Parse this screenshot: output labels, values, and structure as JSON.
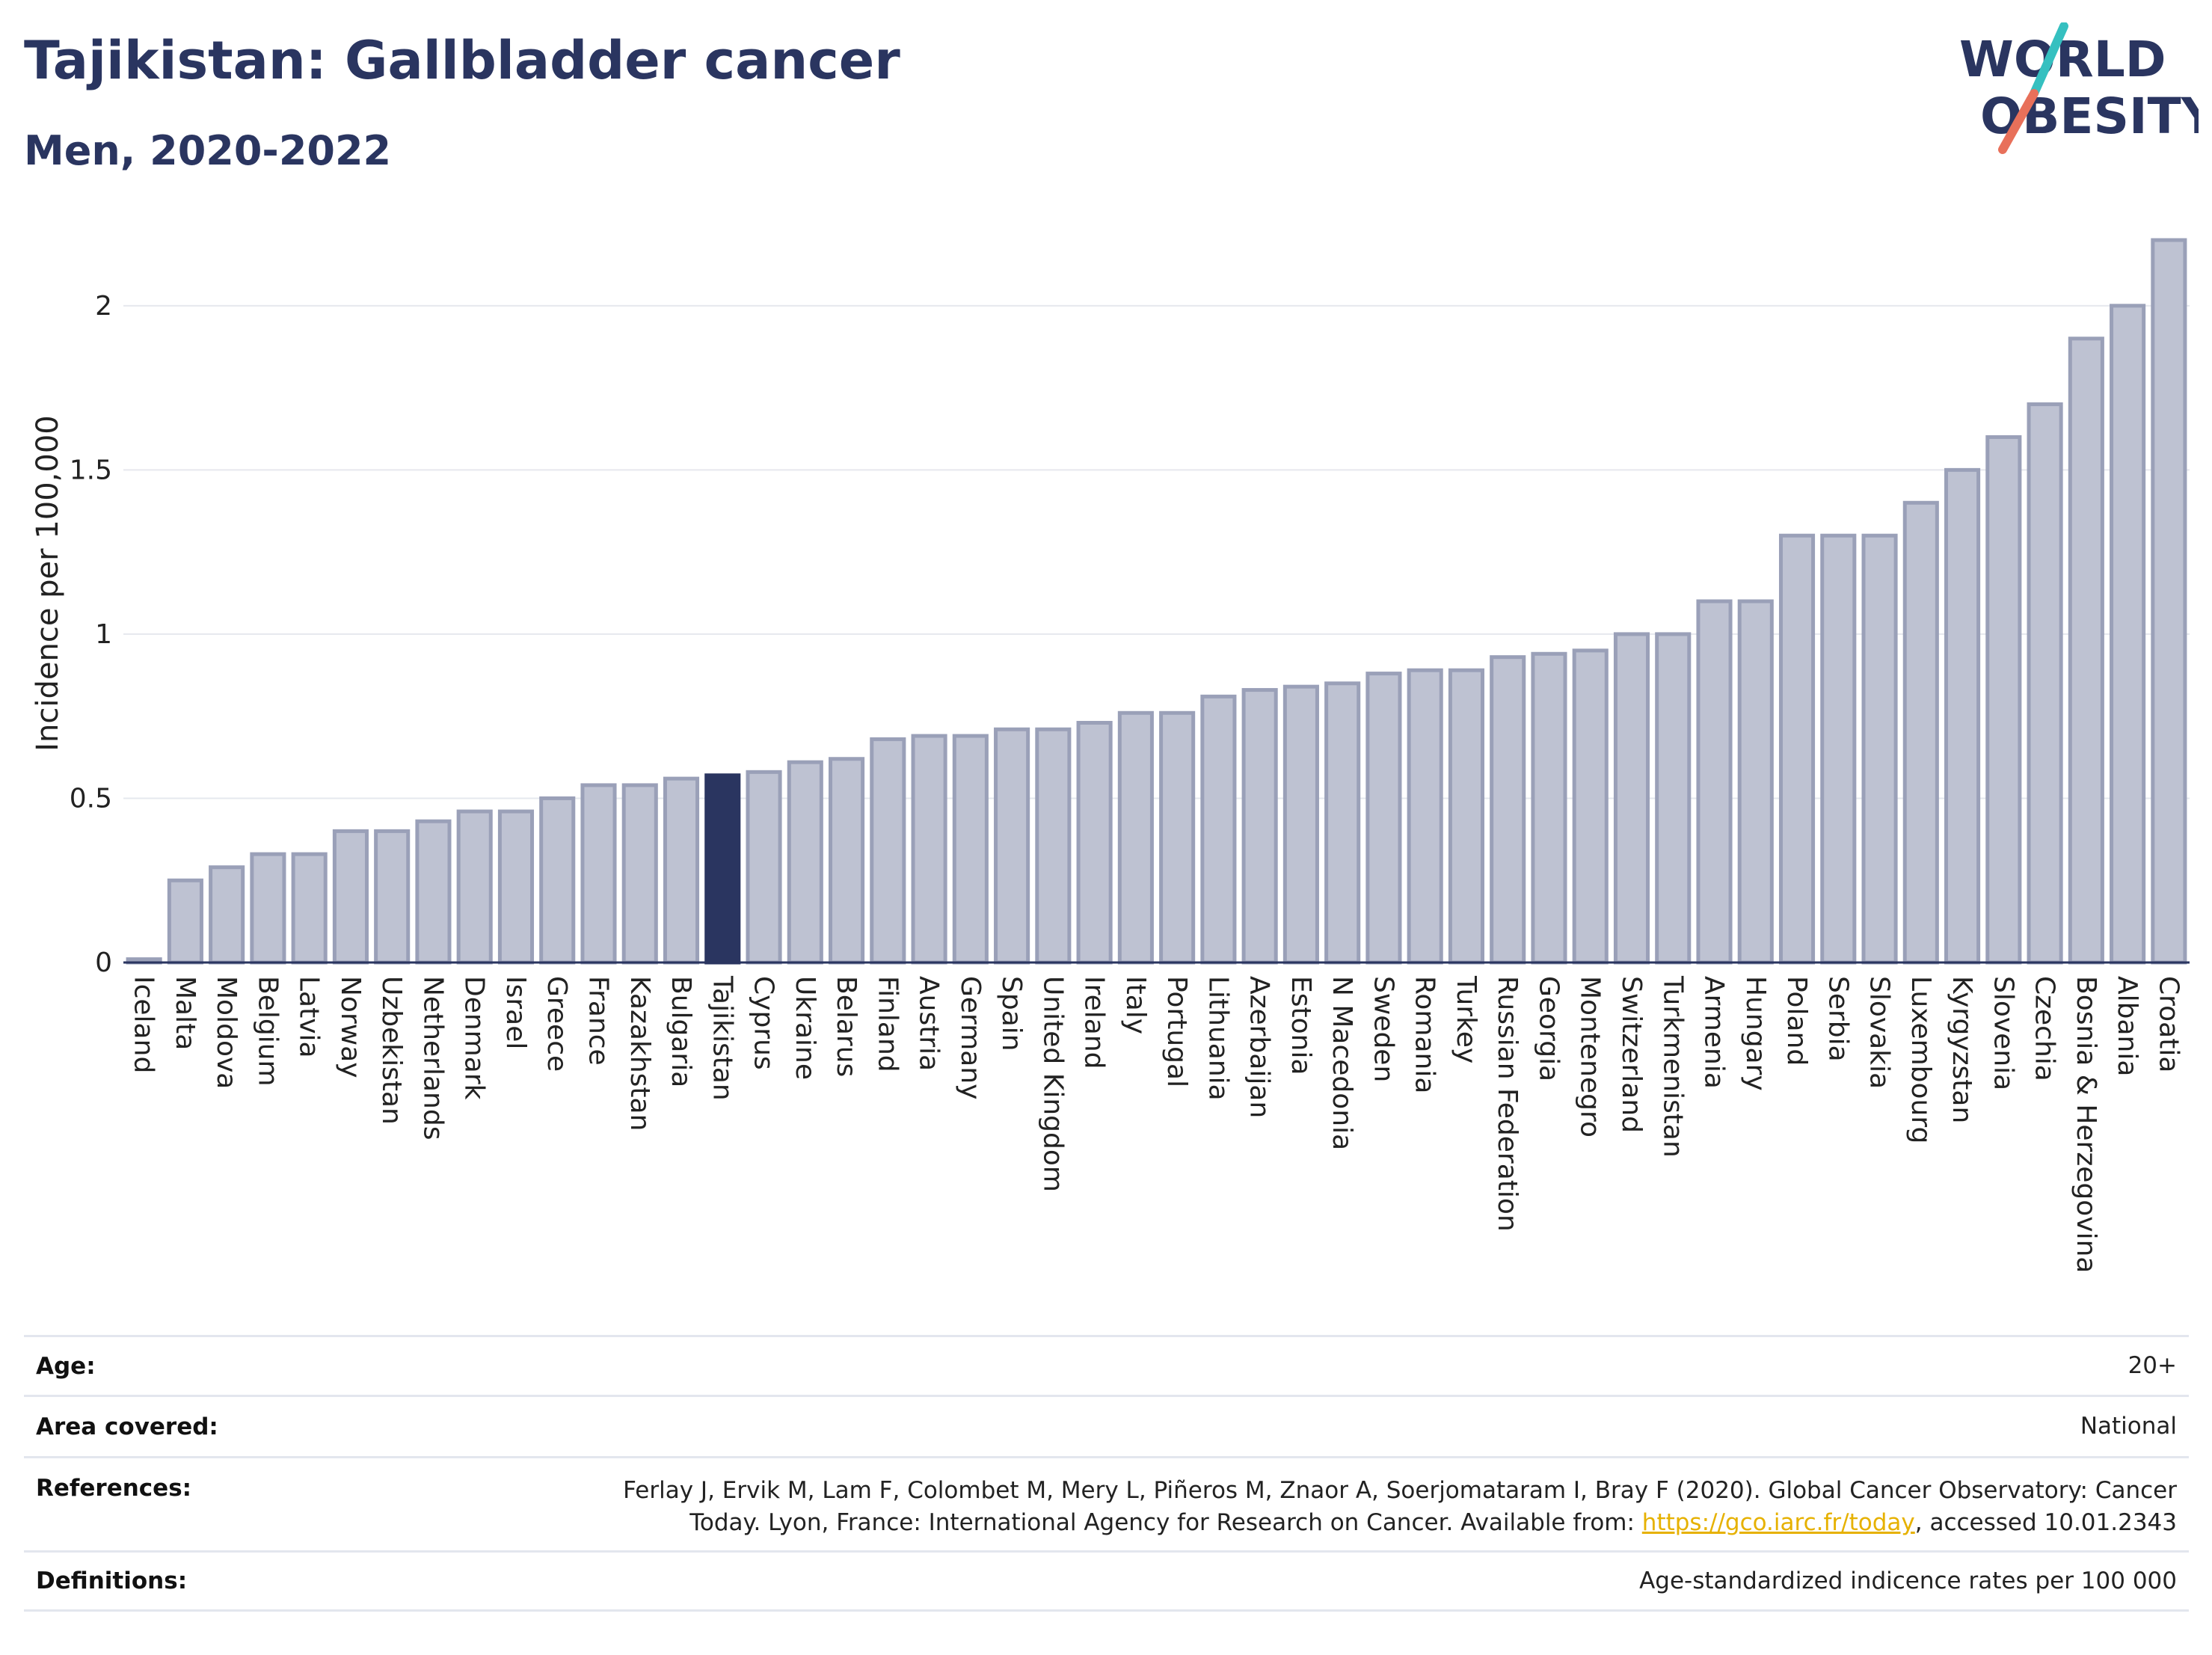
{
  "header": {
    "title": "Tajikistan: Gallbladder cancer",
    "subtitle": "Men, 2020-2022"
  },
  "logo": {
    "line1_a": "W",
    "line1_o": "O",
    "line1_b": "RLD",
    "line2_o": "O",
    "line2_b": "BESITY",
    "colors": {
      "text": "#2a3560",
      "slash_top": "#35c0c0",
      "slash_bottom": "#e8705a"
    }
  },
  "chart_data": {
    "type": "bar",
    "title": "Tajikistan: Gallbladder cancer",
    "subtitle": "Men, 2020-2022",
    "xlabel": "",
    "ylabel": "Incidence per 100,000",
    "ylim": [
      0,
      2.2
    ],
    "yticks": [
      0,
      0.5,
      1,
      1.5,
      2
    ],
    "ytick_labels": [
      "0",
      "0.5",
      "1",
      "1.5",
      "2"
    ],
    "grid": true,
    "highlight": "Tajikistan",
    "colors": {
      "bar": "#bec2d2",
      "bar_edge": "#9aa0b8",
      "highlight": "#2a3560"
    },
    "categories": [
      "Iceland",
      "Malta",
      "Moldova",
      "Belgium",
      "Latvia",
      "Norway",
      "Uzbekistan",
      "Netherlands",
      "Denmark",
      "Israel",
      "Greece",
      "France",
      "Kazakhstan",
      "Bulgaria",
      "Tajikistan",
      "Cyprus",
      "Ukraine",
      "Belarus",
      "Finland",
      "Austria",
      "Germany",
      "Spain",
      "United Kingdom",
      "Ireland",
      "Italy",
      "Portugal",
      "Lithuania",
      "Azerbaijan",
      "Estonia",
      "N Macedonia",
      "Sweden",
      "Romania",
      "Turkey",
      "Russian Federation",
      "Georgia",
      "Montenegro",
      "Switzerland",
      "Turkmenistan",
      "Armenia",
      "Hungary",
      "Poland",
      "Serbia",
      "Slovakia",
      "Luxembourg",
      "Kyrgyzstan",
      "Slovenia",
      "Czechia",
      "Bosnia & Herzegovina",
      "Albania",
      "Croatia"
    ],
    "values": [
      0.01,
      0.25,
      0.29,
      0.33,
      0.33,
      0.4,
      0.4,
      0.43,
      0.46,
      0.46,
      0.5,
      0.54,
      0.54,
      0.56,
      0.57,
      0.58,
      0.61,
      0.62,
      0.68,
      0.69,
      0.69,
      0.71,
      0.71,
      0.73,
      0.76,
      0.76,
      0.81,
      0.83,
      0.84,
      0.85,
      0.88,
      0.89,
      0.89,
      0.93,
      0.94,
      0.95,
      1.0,
      1.0,
      1.1,
      1.1,
      1.3,
      1.3,
      1.3,
      1.4,
      1.5,
      1.6,
      1.7,
      1.9,
      2.0,
      2.2
    ]
  },
  "info": {
    "age_label": "Age:",
    "age_value": "20+",
    "area_label": "Area covered:",
    "area_value": "National",
    "ref_label": "References:",
    "ref_line1": "Ferlay J, Ervik M, Lam F, Colombet M, Mery L, Piñeros M, Znaor A, Soerjomataram I, Bray F (2020). Global Cancer Observatory: Cancer",
    "ref_line2_pre": "Today. Lyon, France: International Agency for Research on Cancer. Available from: ",
    "ref_link": "https://gco.iarc.fr/today",
    "ref_line2_post": ", accessed 10.01.2343",
    "def_label": "Definitions:",
    "def_value": "Age-standardized indicence rates per 100 000"
  }
}
